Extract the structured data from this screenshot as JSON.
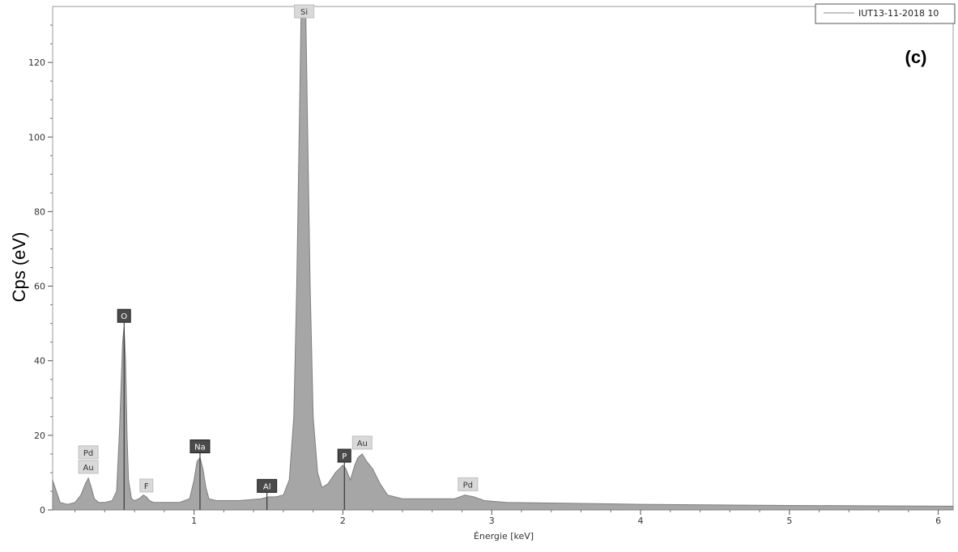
{
  "chart_data": {
    "type": "area",
    "ylabel": "Cps (eV)",
    "xlabel": "Énergie [keV]",
    "panel_label": "(c)",
    "legend": {
      "entry": "IUT13-11-2018 10",
      "position": "top-right"
    },
    "xlim": [
      0.05,
      6.1
    ],
    "ylim": [
      0,
      135
    ],
    "x_ticks": [
      1,
      2,
      3,
      4,
      5,
      6
    ],
    "y_ticks": [
      0,
      20,
      40,
      60,
      80,
      100,
      120
    ],
    "fill_color": "#a6a6a6",
    "series": [
      {
        "x": [
          0.05,
          0.1,
          0.15,
          0.2,
          0.24,
          0.27,
          0.29,
          0.31,
          0.33,
          0.36,
          0.4,
          0.45,
          0.48,
          0.5,
          0.52,
          0.53,
          0.54,
          0.55,
          0.56,
          0.58,
          0.6,
          0.63,
          0.66,
          0.68,
          0.7,
          0.73,
          0.8,
          0.9,
          0.97,
          1.0,
          1.02,
          1.04,
          1.06,
          1.08,
          1.1,
          1.15,
          1.3,
          1.45,
          1.5,
          1.55,
          1.6,
          1.64,
          1.67,
          1.69,
          1.71,
          1.72,
          1.73,
          1.74,
          1.75,
          1.76,
          1.78,
          1.8,
          1.83,
          1.86,
          1.9,
          1.95,
          2.0,
          2.02,
          2.05,
          2.08,
          2.1,
          2.13,
          2.16,
          2.2,
          2.25,
          2.3,
          2.4,
          2.6,
          2.75,
          2.82,
          2.88,
          2.95,
          3.1,
          3.5,
          4.0,
          5.0,
          6.1
        ],
        "y": [
          8,
          2,
          1.5,
          2,
          4,
          7,
          8.5,
          6,
          3,
          2,
          2,
          2.5,
          5,
          22,
          45,
          49,
          40,
          20,
          8,
          3,
          2.5,
          3,
          4,
          3.5,
          2.5,
          2,
          2,
          2,
          3,
          8,
          13,
          14,
          11,
          6,
          3,
          2.5,
          2.5,
          3,
          3.5,
          3.5,
          4,
          8,
          25,
          60,
          110,
          135,
          135,
          135,
          135,
          110,
          60,
          25,
          10,
          6,
          7,
          10,
          12,
          11,
          8,
          12,
          14,
          15,
          13,
          11,
          7,
          4,
          3,
          3,
          3,
          4,
          3.5,
          2.5,
          2,
          1.8,
          1.5,
          1.2,
          1
        ]
      }
    ],
    "annotations": [
      {
        "label": "O",
        "x": 0.53,
        "dark": true
      },
      {
        "label": "Au",
        "x": 0.29,
        "dark": false
      },
      {
        "label": "Pd",
        "x": 0.29,
        "dark": false
      },
      {
        "label": "F",
        "x": 0.68,
        "dark": false
      },
      {
        "label": "Na",
        "x": 1.04,
        "dark": true
      },
      {
        "label": "Al",
        "x": 1.49,
        "dark": true
      },
      {
        "label": "Si",
        "x": 1.74,
        "dark": false
      },
      {
        "label": "P",
        "x": 2.01,
        "dark": true
      },
      {
        "label": "Au",
        "x": 2.13,
        "dark": false
      },
      {
        "label": "Pd",
        "x": 2.84,
        "dark": false
      }
    ]
  }
}
